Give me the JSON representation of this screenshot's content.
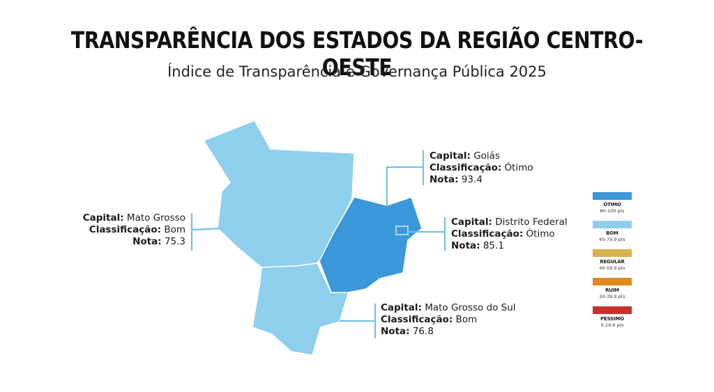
{
  "header": {
    "title": "TRANSPARÊNCIA DOS ESTADOS DA REGIÃO CENTRO-OESTE",
    "subtitle": "Índice de Transparência e Governança Pública 2025"
  },
  "field_labels": {
    "capital": "Capital:",
    "classification": "Classificação:",
    "score": "Nota:"
  },
  "states": {
    "mato_grosso": {
      "capital": "Mato Grosso",
      "classification": "Bom",
      "score": "75.3",
      "color": "#8ecfee"
    },
    "goias": {
      "capital": "Goiás",
      "classification": "Ótimo",
      "score": "93.4",
      "color": "#3a97da"
    },
    "distrito_federal": {
      "capital": "Distrito Federal",
      "classification": "Ótimo",
      "score": "85.1",
      "color": "#3a97da"
    },
    "mato_grosso_do_sul": {
      "capital": "Mato Grosso do Sul",
      "classification": "Bom",
      "score": "76.8",
      "color": "#8ecfee"
    }
  },
  "legend": [
    {
      "label": "ÓTIMO",
      "range": "80-100 pts",
      "color": "#3a97da"
    },
    {
      "label": "BOM",
      "range": "60-79,9 pts",
      "color": "#8ecfee"
    },
    {
      "label": "REGULAR",
      "range": "40-59,9 pts",
      "color": "#d9b24a"
    },
    {
      "label": "RUIM",
      "range": "20-39,9 pts",
      "color": "#de8a1c"
    },
    {
      "label": "PÉSSIMO",
      "range": "0-19,9 pts",
      "color": "#c9302c"
    }
  ],
  "leader_line_color": "#6fc0ea"
}
